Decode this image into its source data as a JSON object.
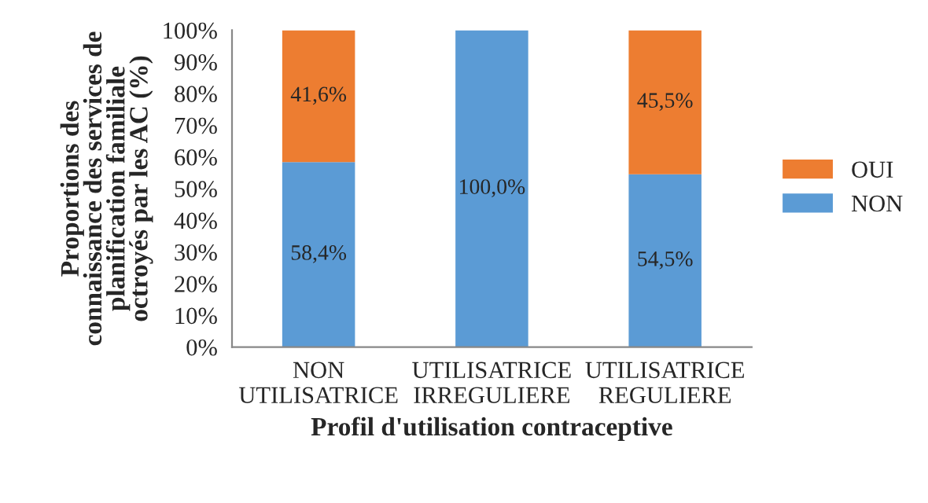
{
  "chart_data": {
    "type": "bar",
    "stacked": true,
    "xlabel": "Profil d'utilisation contraceptive",
    "ylabel": "Proportions des\nconnaissance des services de\nplanification familiale\noctroyés par les AC (%)",
    "categories": [
      "NON\nUTILISATRICE",
      "UTILISATRICE\nIRREGULIERE",
      "UTILISATRICE\nREGULIERE"
    ],
    "series": [
      {
        "name": "NON",
        "color": "#5b9bd5",
        "values": [
          58.4,
          100.0,
          54.5
        ],
        "value_labels": [
          "58,4%",
          "100,0%",
          "54,5%"
        ]
      },
      {
        "name": "OUI",
        "color": "#ed7d31",
        "values": [
          41.6,
          0,
          45.5
        ],
        "value_labels": [
          "41,6%",
          null,
          "45,5%"
        ]
      }
    ],
    "ylim": [
      0,
      100
    ],
    "yticks": [
      {
        "value": 0,
        "label": "0%"
      },
      {
        "value": 10,
        "label": "10%"
      },
      {
        "value": 20,
        "label": "20%"
      },
      {
        "value": 30,
        "label": "30%"
      },
      {
        "value": 40,
        "label": "40%"
      },
      {
        "value": 50,
        "label": "50%"
      },
      {
        "value": 60,
        "label": "60%"
      },
      {
        "value": 70,
        "label": "70%"
      },
      {
        "value": 80,
        "label": "80%"
      },
      {
        "value": 90,
        "label": "90%"
      },
      {
        "value": 100,
        "label": "100%"
      }
    ],
    "legend": "right",
    "grid": false
  }
}
